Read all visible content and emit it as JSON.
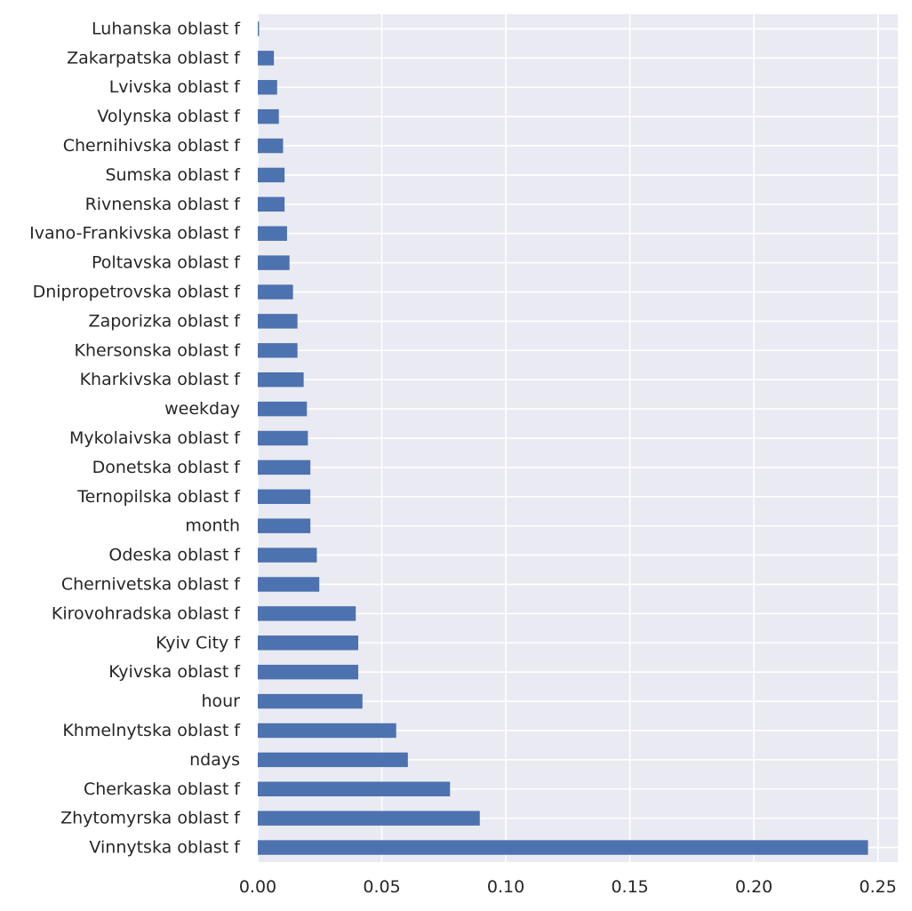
{
  "chart_data": {
    "type": "bar",
    "orientation": "horizontal",
    "categories": [
      "Vinnytska oblast f",
      "Zhytomyrska oblast f",
      "Cherkaska oblast f",
      "ndays",
      "Khmelnytska oblast f",
      "hour",
      "Kyivska oblast f",
      "Kyiv City f",
      "Kirovohradska oblast f",
      "Chernivetska oblast f",
      "Odeska oblast f",
      "month",
      "Ternopilska oblast f",
      "Donetska oblast f",
      "Mykolaivska oblast f",
      "weekday",
      "Kharkivska oblast f",
      "Khersonska oblast f",
      "Zaporizka oblast f",
      "Dnipropetrovska oblast f",
      "Poltavska oblast f",
      "Ivano-Frankivska oblast f",
      "Rivnenska oblast f",
      "Sumska oblast f",
      "Chernihivska oblast f",
      "Volynska oblast f",
      "Lvivska oblast f",
      "Zakarpatska oblast f",
      "Luhanska oblast f"
    ],
    "values": [
      0.246,
      0.0895,
      0.0775,
      0.0605,
      0.0558,
      0.0422,
      0.0405,
      0.0405,
      0.0395,
      0.0248,
      0.0238,
      0.0212,
      0.0212,
      0.0212,
      0.0202,
      0.0198,
      0.0185,
      0.016,
      0.016,
      0.0142,
      0.0128,
      0.0118,
      0.0108,
      0.0108,
      0.0102,
      0.0085,
      0.0078,
      0.0065,
      0.0005
    ],
    "title": "",
    "xlabel": "",
    "ylabel": "",
    "xlim": [
      0,
      0.258
    ],
    "xticks": [
      0.0,
      0.05,
      0.1,
      0.15,
      0.2,
      0.25
    ],
    "xtick_labels": [
      "0.00",
      "0.05",
      "0.10",
      "0.15",
      "0.20",
      "0.25"
    ],
    "grid": true,
    "legend": "none",
    "colors": {
      "bar": "#4c72b0",
      "background": "#eaeaf2",
      "grid": "#ffffff",
      "text": "#262626"
    }
  }
}
